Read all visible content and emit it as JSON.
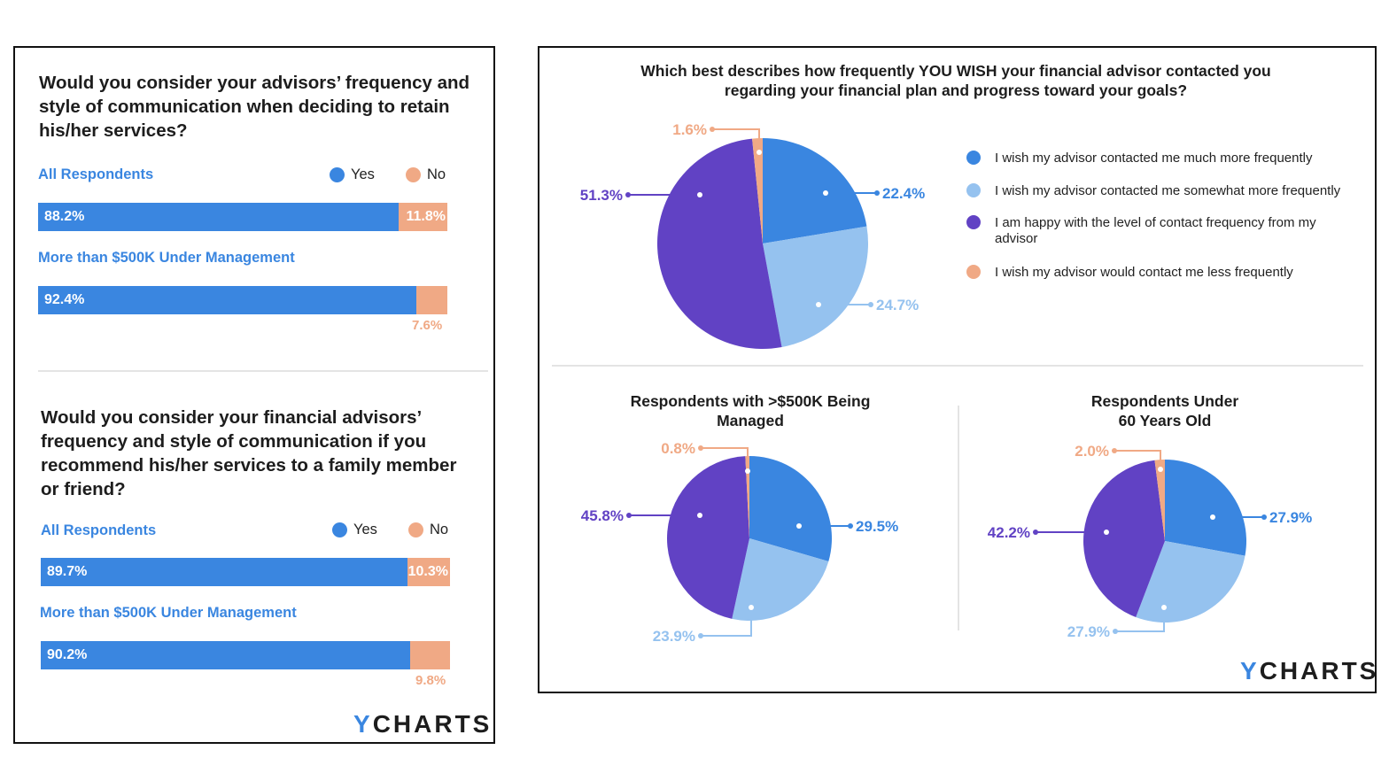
{
  "colors": {
    "yes": "#3a86e0",
    "no": "#f0a985",
    "much_more": "#3a86e0",
    "somewhat_more": "#95c2ef",
    "happy": "#6142c4",
    "less": "#f0a985"
  },
  "left": {
    "q1": {
      "title": "Would you consider your advisors’ frequency and style of communication when deciding to retain his/her services?",
      "legend": {
        "yes": "Yes",
        "no": "No"
      },
      "groups": [
        {
          "label": "All Respondents",
          "yes_label": "88.2%",
          "no_label": "11.8%"
        },
        {
          "label": "More than $500K Under Management",
          "yes_label": "92.4%",
          "no_label": "7.6%"
        }
      ]
    },
    "q2": {
      "title": "Would you consider your financial advisors’ frequency and style of communication if you recommend his/her services to a family member or friend?",
      "legend": {
        "yes": "Yes",
        "no": "No"
      },
      "groups": [
        {
          "label": "All Respondents",
          "yes_label": "89.7%",
          "no_label": "10.3%"
        },
        {
          "label": "More than $500K Under Management",
          "yes_label": "90.2%",
          "no_label": "9.8%"
        }
      ]
    },
    "logo": {
      "y": "Y",
      "rest": "CHARTS"
    }
  },
  "right": {
    "title": "Which best describes how frequently YOU WISH your financial advisor contacted you regarding your financial plan and progress toward your goals?",
    "legend": [
      "I wish my advisor contacted me much more frequently",
      "I wish my advisor contacted me somewhat more frequently",
      "I am happy with the level of contact frequency from my advisor",
      "I wish my advisor would contact me less frequently"
    ],
    "sub1_title": "Respondents with >$500K Being Managed",
    "sub2_title": "Respondents Under 60 Years Old",
    "logo": {
      "y": "Y",
      "rest": "CHARTS"
    }
  },
  "chart_data": [
    {
      "type": "bar",
      "title": "Would you consider your advisors’ frequency and style of communication when deciding to retain his/her services?",
      "categories": [
        "All Respondents",
        "More than $500K Under Management"
      ],
      "series": [
        {
          "name": "Yes",
          "values": [
            88.2,
            92.4
          ]
        },
        {
          "name": "No",
          "values": [
            11.8,
            7.6
          ]
        }
      ],
      "stacked": true,
      "orientation": "horizontal",
      "xlim": [
        0,
        100
      ]
    },
    {
      "type": "bar",
      "title": "Would you consider your financial advisors’ frequency and style of communication if you recommend his/her services to a family member or friend?",
      "categories": [
        "All Respondents",
        "More than $500K Under Management"
      ],
      "series": [
        {
          "name": "Yes",
          "values": [
            89.7,
            90.2
          ]
        },
        {
          "name": "No",
          "values": [
            10.3,
            9.8
          ]
        }
      ],
      "stacked": true,
      "orientation": "horizontal",
      "xlim": [
        0,
        100
      ]
    },
    {
      "type": "pie",
      "title": "Which best describes how frequently YOU WISH your financial advisor contacted you regarding your financial plan and progress toward your goals?",
      "categories": [
        "I wish my advisor contacted me much more frequently",
        "I wish my advisor contacted me somewhat more frequently",
        "I am happy with the level of contact frequency from my advisor",
        "I wish my advisor would contact me less frequently"
      ],
      "values": [
        22.4,
        24.7,
        51.3,
        1.6
      ],
      "labels": [
        "22.4%",
        "24.7%",
        "51.3%",
        "1.6%"
      ],
      "legend": "right"
    },
    {
      "type": "pie",
      "title": "Respondents with >$500K Being Managed",
      "categories": [
        "I wish my advisor contacted me much more frequently",
        "I wish my advisor contacted me somewhat more frequently",
        "I am happy with the level of contact frequency from my advisor",
        "I wish my advisor would contact me less frequently"
      ],
      "values": [
        29.5,
        23.9,
        45.8,
        0.8
      ],
      "labels": [
        "29.5%",
        "23.9%",
        "45.8%",
        "0.8%"
      ]
    },
    {
      "type": "pie",
      "title": "Respondents Under 60 Years Old",
      "categories": [
        "I wish my advisor contacted me much more frequently",
        "I wish my advisor contacted me somewhat more frequently",
        "I am happy with the level of contact frequency from my advisor",
        "I wish my advisor would contact me less frequently"
      ],
      "values": [
        27.9,
        27.9,
        42.2,
        2.0
      ],
      "labels": [
        "27.9%",
        "27.9%",
        "42.2%",
        "2.0%"
      ]
    }
  ]
}
